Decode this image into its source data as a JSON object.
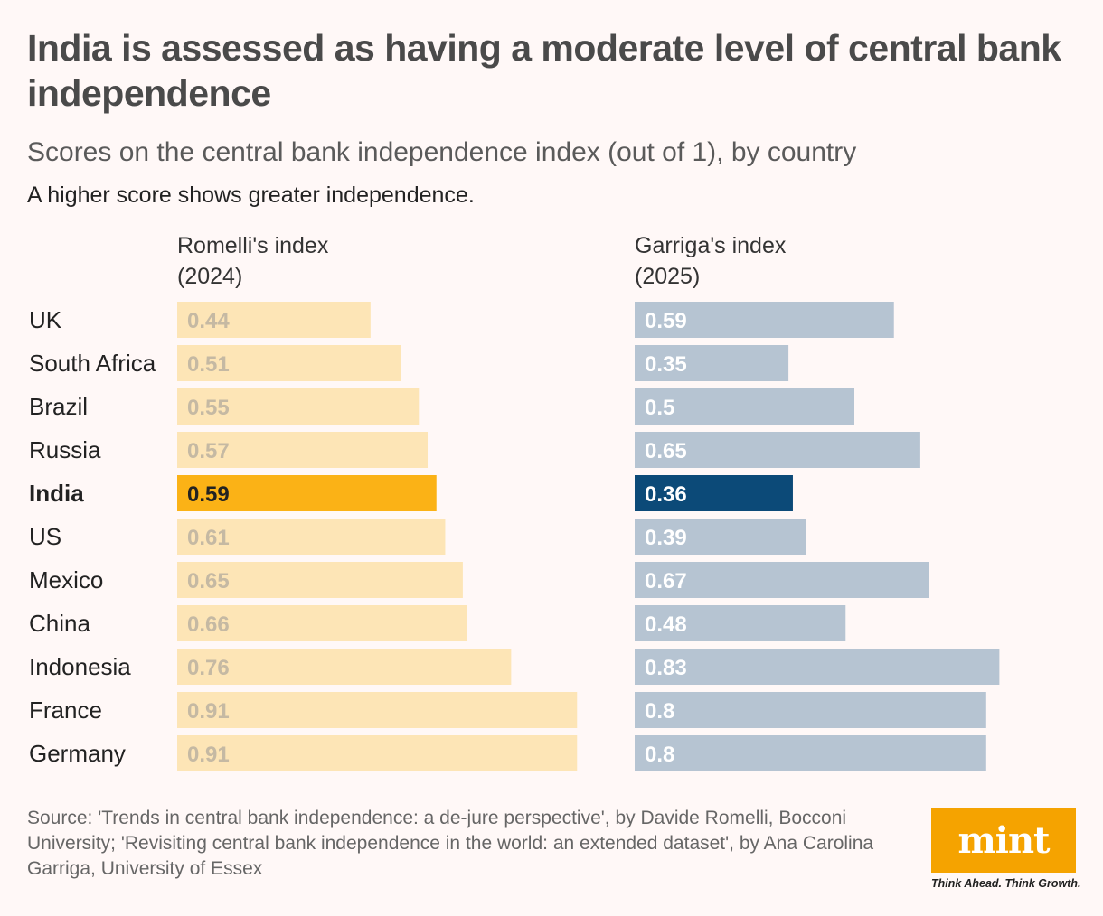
{
  "title": "India is assessed as having a moderate level of central bank independence",
  "subtitle": "Scores on the central bank independence index (out of 1), by country",
  "note": "A higher score shows greater independence.",
  "source": "Source: 'Trends in central bank independence: a de-jure perspective', by Davide Romelli, Bocconi University; 'Revisiting central bank independence in the world: an extended dataset', by Ana Carolina Garriga, University of Essex",
  "logo": {
    "text": "mint",
    "tagline": "Think Ahead. Think Growth."
  },
  "colors": {
    "romelli_bar": "#fde5b6",
    "romelli_label": "#c5b9a3",
    "romelli_highlight_bar": "#fbb216",
    "romelli_highlight_label": "#222222",
    "garriga_bar": "#b6c4d2",
    "garriga_label": "#ffffff",
    "garriga_highlight_bar": "#0c4a78",
    "garriga_highlight_label": "#ffffff",
    "logo_bg": "#f5a300"
  },
  "chart_data": {
    "type": "bar",
    "orientation": "horizontal",
    "categories": [
      "UK",
      "South Africa",
      "Brazil",
      "Russia",
      "India",
      "US",
      "Mexico",
      "China",
      "Indonesia",
      "France",
      "Germany"
    ],
    "highlight": "India",
    "series": [
      {
        "name_line1": "Romelli's index",
        "name_line2": "(2024)",
        "values": [
          0.44,
          0.51,
          0.55,
          0.57,
          0.59,
          0.61,
          0.65,
          0.66,
          0.76,
          0.91,
          0.91
        ]
      },
      {
        "name_line1": "Garriga's index",
        "name_line2": "(2025)",
        "values": [
          0.59,
          0.35,
          0.5,
          0.65,
          0.36,
          0.39,
          0.67,
          0.48,
          0.83,
          0.8,
          0.8
        ]
      }
    ],
    "xlim": [
      0,
      1
    ],
    "data_labels": true,
    "grid": false
  }
}
